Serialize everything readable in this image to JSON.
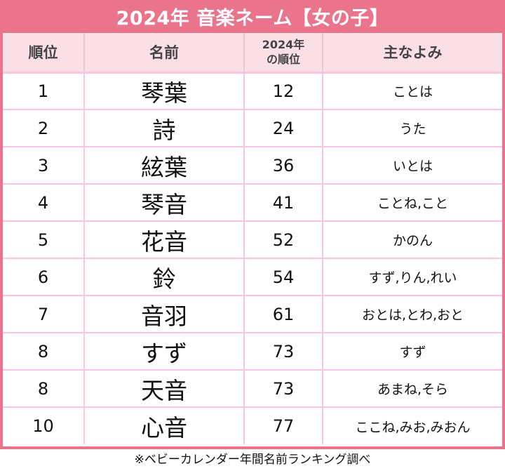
{
  "title": "2024年 音楽ネーム【女の子】",
  "colors": {
    "accent": "#e9748b",
    "header_bg": "#fbdfe6",
    "grid_line": "#fcc4e2"
  },
  "table": {
    "headers": [
      "順位",
      "名前",
      "2024年の順位",
      "主なよみ"
    ],
    "header_lines": {
      "prev_rank_line1": "2024年",
      "prev_rank_line2": "の順位"
    },
    "rows": [
      {
        "rank": "1",
        "name": "琴葉",
        "prev_rank": "12",
        "reading": "ことは"
      },
      {
        "rank": "2",
        "name": "詩",
        "prev_rank": "24",
        "reading": "うた"
      },
      {
        "rank": "3",
        "name": "絃葉",
        "prev_rank": "36",
        "reading": "いとは"
      },
      {
        "rank": "4",
        "name": "琴音",
        "prev_rank": "41",
        "reading": "ことね,こと"
      },
      {
        "rank": "5",
        "name": "花音",
        "prev_rank": "52",
        "reading": "かのん"
      },
      {
        "rank": "6",
        "name": "鈴",
        "prev_rank": "54",
        "reading": "すず,りん,れい"
      },
      {
        "rank": "7",
        "name": "音羽",
        "prev_rank": "61",
        "reading": "おとは,とわ,おと"
      },
      {
        "rank": "8",
        "name": "すず",
        "prev_rank": "73",
        "reading": "すず"
      },
      {
        "rank": "8",
        "name": "天音",
        "prev_rank": "73",
        "reading": "あまね,そら"
      },
      {
        "rank": "10",
        "name": "心音",
        "prev_rank": "77",
        "reading": "ここね,みお,みおん"
      }
    ]
  },
  "footer": "※ベビーカレンダー年間名前ランキング調べ"
}
